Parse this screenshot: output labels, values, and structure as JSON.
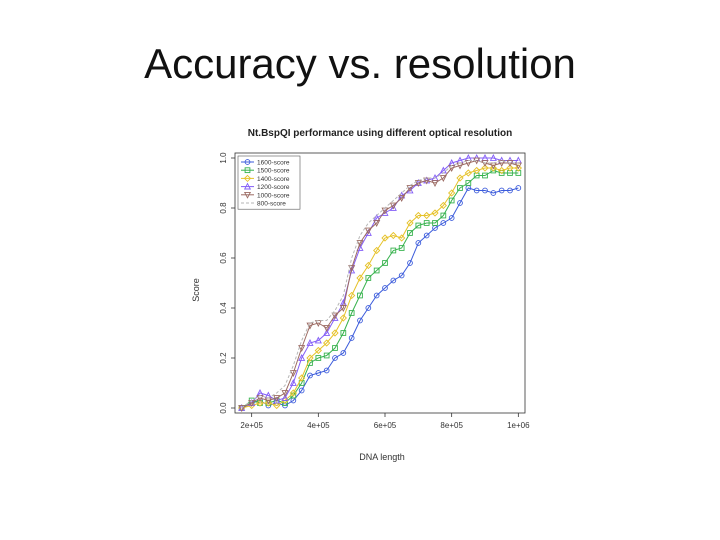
{
  "slide": {
    "title": "Accuracy vs. resolution"
  },
  "chart_data": {
    "type": "line",
    "title": "Nt.BspQI performance using different optical resolution",
    "xlabel": "DNA length",
    "ylabel": "Score",
    "xlim": [
      150000,
      1020000
    ],
    "ylim": [
      -0.02,
      1.02
    ],
    "xticks": [
      200000,
      400000,
      600000,
      800000,
      1000000
    ],
    "xtick_labels": [
      "2e+05",
      "4e+05",
      "6e+05",
      "8e+05",
      "1e+06"
    ],
    "yticks": [
      0.0,
      0.2,
      0.4,
      0.6,
      0.8,
      1.0
    ],
    "ytick_labels": [
      "0.0",
      "0.2",
      "0.4",
      "0.6",
      "0.8",
      "1.0"
    ],
    "grid": false,
    "legend_position": "top-left",
    "x": [
      170000,
      200000,
      225000,
      250000,
      275000,
      300000,
      325000,
      350000,
      375000,
      400000,
      425000,
      450000,
      475000,
      500000,
      525000,
      550000,
      575000,
      600000,
      625000,
      650000,
      675000,
      700000,
      725000,
      750000,
      775000,
      800000,
      825000,
      850000,
      875000,
      900000,
      925000,
      950000,
      975000,
      1000000
    ],
    "series": [
      {
        "name": "1600-score",
        "color": "#3b5bdb",
        "marker": "circle",
        "values": [
          0.0,
          0.02,
          0.03,
          0.01,
          0.02,
          0.01,
          0.03,
          0.07,
          0.13,
          0.14,
          0.15,
          0.2,
          0.22,
          0.28,
          0.35,
          0.4,
          0.45,
          0.48,
          0.51,
          0.53,
          0.58,
          0.66,
          0.69,
          0.72,
          0.74,
          0.76,
          0.82,
          0.88,
          0.87,
          0.87,
          0.86,
          0.87,
          0.87,
          0.88
        ]
      },
      {
        "name": "1500-score",
        "color": "#37b24d",
        "marker": "square",
        "values": [
          0.0,
          0.03,
          0.02,
          0.02,
          0.03,
          0.02,
          0.05,
          0.1,
          0.18,
          0.2,
          0.21,
          0.24,
          0.3,
          0.38,
          0.45,
          0.52,
          0.55,
          0.58,
          0.63,
          0.64,
          0.7,
          0.73,
          0.74,
          0.74,
          0.77,
          0.83,
          0.88,
          0.9,
          0.93,
          0.93,
          0.95,
          0.94,
          0.94,
          0.94
        ]
      },
      {
        "name": "1400-score",
        "color": "#e6c229",
        "marker": "diamond",
        "values": [
          0.0,
          0.01,
          0.02,
          0.02,
          0.01,
          0.03,
          0.06,
          0.12,
          0.2,
          0.23,
          0.26,
          0.3,
          0.36,
          0.45,
          0.52,
          0.57,
          0.63,
          0.68,
          0.69,
          0.68,
          0.74,
          0.77,
          0.77,
          0.78,
          0.81,
          0.86,
          0.92,
          0.94,
          0.95,
          0.96,
          0.96,
          0.95,
          0.96,
          0.96
        ]
      },
      {
        "name": "1200-score",
        "color": "#845ef7",
        "marker": "triangle",
        "values": [
          0.0,
          0.02,
          0.06,
          0.05,
          0.03,
          0.04,
          0.1,
          0.2,
          0.26,
          0.27,
          0.3,
          0.36,
          0.42,
          0.55,
          0.64,
          0.7,
          0.76,
          0.78,
          0.8,
          0.85,
          0.87,
          0.9,
          0.91,
          0.92,
          0.95,
          0.98,
          0.99,
          1.0,
          1.0,
          1.0,
          1.0,
          0.99,
          0.99,
          0.99
        ]
      },
      {
        "name": "1000-score",
        "color": "#9c6b63",
        "marker": "inv-triangle",
        "values": [
          0.0,
          0.02,
          0.04,
          0.03,
          0.04,
          0.06,
          0.14,
          0.24,
          0.33,
          0.34,
          0.32,
          0.37,
          0.4,
          0.56,
          0.66,
          0.71,
          0.74,
          0.79,
          0.81,
          0.84,
          0.88,
          0.9,
          0.91,
          0.9,
          0.92,
          0.96,
          0.97,
          0.98,
          0.99,
          0.98,
          0.97,
          0.98,
          0.98,
          0.97
        ]
      },
      {
        "name": "800-score",
        "color": "#b5b5b5",
        "marker": "none",
        "values": [
          0.0,
          0.03,
          0.05,
          0.04,
          0.06,
          0.09,
          0.17,
          0.27,
          0.34,
          0.35,
          0.35,
          0.39,
          0.45,
          0.6,
          0.69,
          0.74,
          0.77,
          0.8,
          0.83,
          0.86,
          0.89,
          0.91,
          0.92,
          0.92,
          0.94,
          0.97,
          0.98,
          0.99,
          0.99,
          0.98,
          0.98,
          0.99,
          0.98,
          0.98
        ]
      }
    ]
  }
}
